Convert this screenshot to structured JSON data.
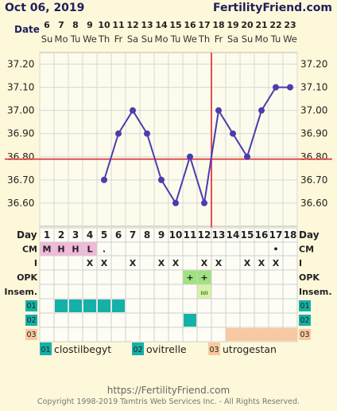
{
  "header": {
    "date": "Oct 06, 2019",
    "site": "FertilityFriend.com",
    "date_row_label": "Date",
    "day_row_label": "Day"
  },
  "colors": {
    "line": "#4b3cb0",
    "coverline": "#e05050",
    "cm_fill": "#f2b8d8",
    "opk_fill": "#9fe37f",
    "insem_fill": "#d6f2a8",
    "med1_fill": "#15b0a8",
    "med2_fill": "#15b0a8",
    "med3_fill": "#f8c9a0"
  },
  "chart_data": {
    "type": "line",
    "x_dates": [
      "6",
      "7",
      "8",
      "9",
      "10",
      "11",
      "12",
      "13",
      "14",
      "15",
      "16",
      "17",
      "18",
      "19",
      "20",
      "21",
      "22",
      "23"
    ],
    "x_weekdays": [
      "Su",
      "Mo",
      "Tu",
      "We",
      "Th",
      "Fr",
      "Sa",
      "Su",
      "Mo",
      "Tu",
      "We",
      "Th",
      "Fr",
      "Sa",
      "Su",
      "Mo",
      "Tu",
      "We"
    ],
    "cycle_days": [
      "1",
      "2",
      "3",
      "4",
      "5",
      "6",
      "7",
      "8",
      "9",
      "10",
      "11",
      "12",
      "13",
      "14",
      "15",
      "16",
      "17",
      "18"
    ],
    "temps": [
      null,
      null,
      null,
      null,
      36.7,
      36.9,
      37.0,
      36.9,
      36.7,
      36.6,
      36.8,
      36.6,
      37.0,
      36.9,
      36.8,
      37.0,
      37.1,
      37.1
    ],
    "y_ticks": [
      "37.20",
      "37.10",
      "37.00",
      "36.90",
      "36.80",
      "36.70",
      "36.60"
    ],
    "ylim": [
      36.5,
      37.25
    ],
    "coverline": 36.79,
    "ovulation_day": 12,
    "grid": true
  },
  "rows": {
    "cm": {
      "label": "CM",
      "values": [
        "M",
        "H",
        "H",
        "L",
        ".",
        "",
        "",
        "",
        "",
        "",
        "",
        "",
        "",
        "",
        "",
        "",
        "•",
        ""
      ]
    },
    "intercourse": {
      "label": "I",
      "values": [
        "",
        "",
        "",
        "X",
        "X",
        "",
        "X",
        "",
        "X",
        "X",
        "",
        "X",
        "X",
        "",
        "X",
        "X",
        "X",
        ""
      ]
    },
    "opk": {
      "label": "OPK",
      "values": [
        "",
        "",
        "",
        "",
        "",
        "",
        "",
        "",
        "",
        "",
        "+",
        "+",
        "",
        "",
        "",
        "",
        "",
        ""
      ]
    },
    "insem": {
      "label": "Insem.",
      "values": [
        "",
        "",
        "",
        "",
        "",
        "",
        "",
        "",
        "",
        "",
        "",
        "IUI",
        "",
        "",
        "",
        "",
        "",
        ""
      ]
    },
    "med1": {
      "label": "01",
      "name": "clostilbegyt",
      "filled": [
        2,
        3,
        4,
        5,
        6
      ]
    },
    "med2": {
      "label": "02",
      "name": "ovitrelle",
      "filled": [
        11
      ]
    },
    "med3": {
      "label": "03",
      "name": "utrogestan",
      "filled": [
        14,
        15,
        16,
        17,
        18
      ]
    }
  },
  "footer": {
    "url": "https://FertilityFriend.com",
    "copyright": "Copyright 1998-2019 Tamtris Web Services Inc. - All Rights Reserved."
  }
}
